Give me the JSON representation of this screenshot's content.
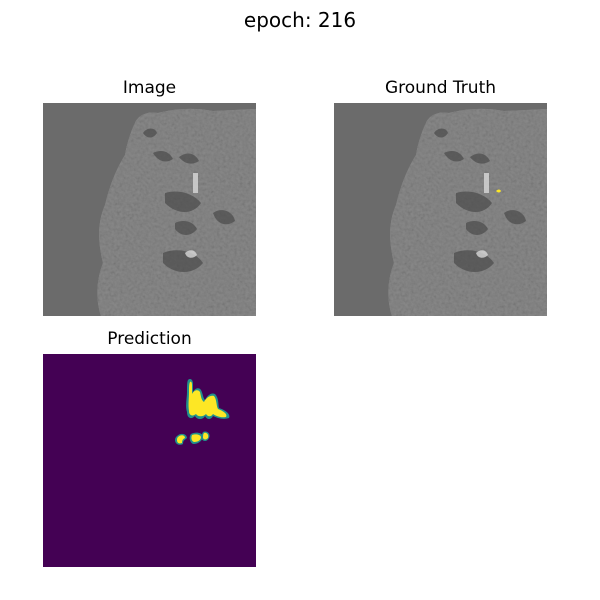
{
  "figure": {
    "suptitle": "epoch: 216"
  },
  "panels": [
    {
      "title": "Image"
    },
    {
      "title": "Ground Truth"
    },
    {
      "title": "Prediction"
    }
  ],
  "colors": {
    "background_gray": "#6b6b6b",
    "tissue_gray": "#8a8a8a",
    "tissue_dark": "#4a4a4a",
    "prediction_background": "#440154",
    "prediction_foreground": "#fde725",
    "prediction_edge": "#21918c"
  }
}
